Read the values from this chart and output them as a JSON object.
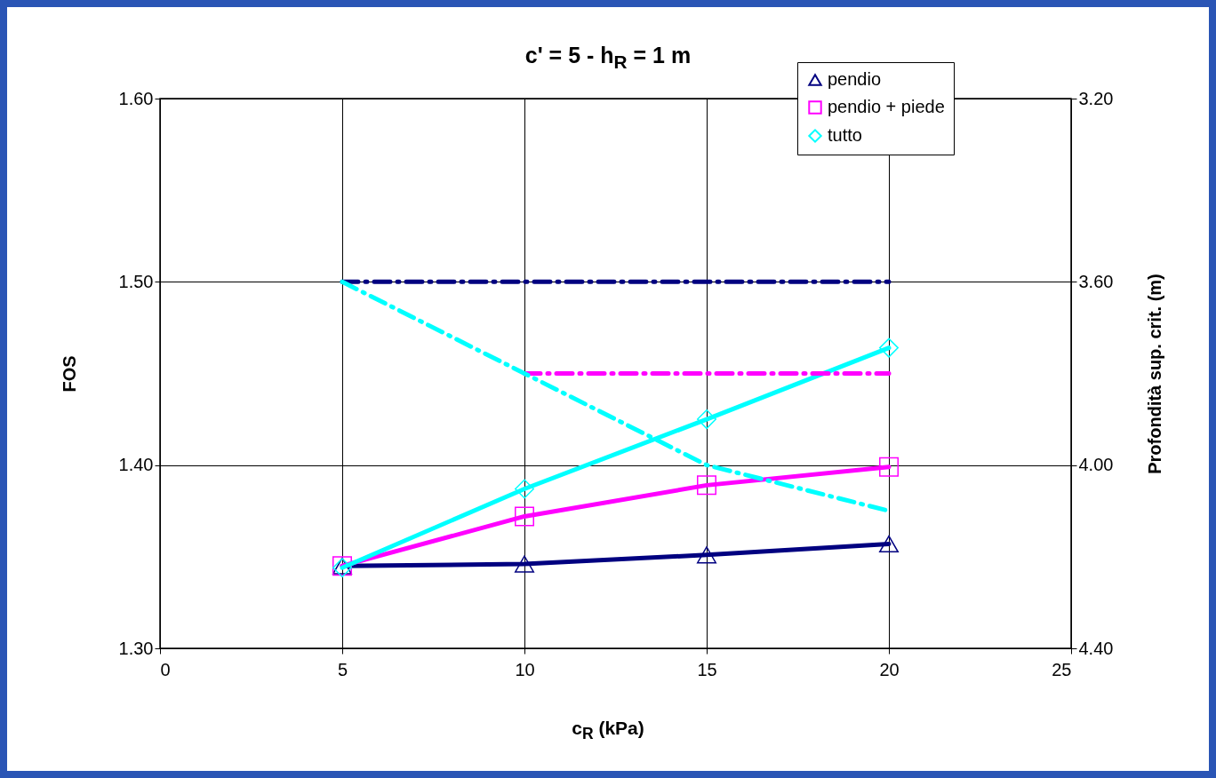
{
  "chart_data": {
    "type": "line",
    "title": "c' = 5 - h$_{R}$ = 1 m",
    "xlabel": "c$_{R}$ (kPa)",
    "ylabel": "FOS",
    "y2label": "Profondità sup. crit. (m)",
    "x": [
      5,
      10,
      15,
      20
    ],
    "series": [
      {
        "name": "pendio",
        "color": "#000080",
        "marker": "triangle",
        "values": [
          1.345,
          1.346,
          1.351,
          1.357
        ]
      },
      {
        "name": "pendio + piede",
        "color": "#ff00ff",
        "marker": "square",
        "values": [
          1.345,
          1.372,
          1.389,
          1.399
        ]
      },
      {
        "name": "tutto",
        "color": "#00ffff",
        "marker": "diamond",
        "values": [
          1.344,
          1.387,
          1.425,
          1.464
        ]
      },
      {
        "color": "#000080",
        "axis": "y2",
        "line_style": "dashed",
        "marker": "none",
        "values": [
          3.6,
          3.6,
          3.6,
          3.6
        ]
      },
      {
        "color": "#ff00ff",
        "axis": "y2",
        "line_style": "dashed",
        "marker": "none",
        "values": [
          null,
          3.8,
          3.8,
          3.8
        ]
      },
      {
        "color": "#00ffff",
        "axis": "y2",
        "line_style": "dashed",
        "marker": "none",
        "values": [
          3.6,
          3.8,
          4.0,
          4.1
        ]
      }
    ],
    "xlim": [
      0,
      25
    ],
    "xticks": [
      0,
      5,
      10,
      15,
      20,
      25
    ],
    "ylim": [
      1.3,
      1.6
    ],
    "yticks": [
      {
        "value": 1.3,
        "label": "1.30"
      },
      {
        "value": 1.4,
        "label": "1.40"
      },
      {
        "value": 1.5,
        "label": "1.50"
      },
      {
        "value": 1.6,
        "label": "1.60"
      }
    ],
    "y2lim": [
      4.4,
      3.2
    ],
    "y2ticks": [
      {
        "value": 3.2,
        "label": "3.20"
      },
      {
        "value": 3.6,
        "label": "3.60"
      },
      {
        "value": 4.0,
        "label": "4.00"
      },
      {
        "value": 4.4,
        "label": "4.40"
      }
    ],
    "grid": true,
    "legend": "top right"
  }
}
